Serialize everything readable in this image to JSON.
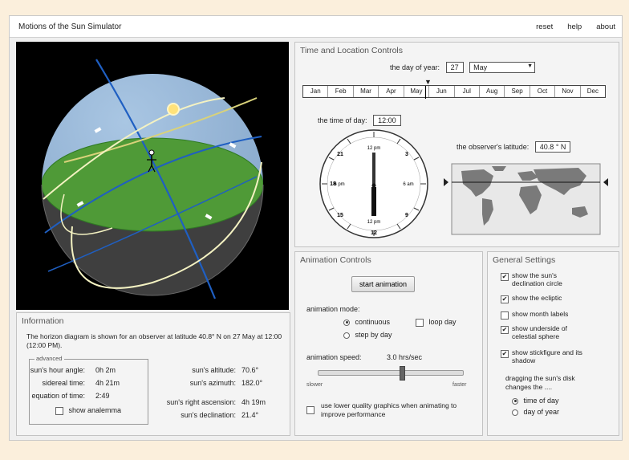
{
  "app": {
    "title": "Motions of the Sun Simulator"
  },
  "menu": {
    "reset": "reset",
    "help": "help",
    "about": "about"
  },
  "time_location": {
    "title": "Time and Location Controls",
    "day_label": "the day of year:",
    "day_value": "27",
    "month_value": "May",
    "months": [
      "Jan",
      "Feb",
      "Mar",
      "Apr",
      "May",
      "Jun",
      "Jul",
      "Aug",
      "Sep",
      "Oct",
      "Nov",
      "Dec"
    ],
    "time_label": "the time of day:",
    "time_value": "12:00",
    "latitude_label": "the observer's latitude:",
    "latitude_value": "40.8 ° N",
    "clock": {
      "top": "12 pm",
      "bottom": "12 pm",
      "left": "6 pm",
      "right": "6 am",
      "n18": "18",
      "n21": "21",
      "n3": "3",
      "n9": "9",
      "n15": "15",
      "n12": "12"
    }
  },
  "info": {
    "title": "Information",
    "description": "The horizon diagram is shown for an observer at latitude 40.8° N on 27 May at 12:00 (12:00 PM).",
    "advanced_label": "advanced",
    "hour_angle_label": "sun's hour angle:",
    "hour_angle_value": "0h 2m",
    "sidereal_label": "sidereal time:",
    "sidereal_value": "4h 21m",
    "eot_label": "equation of time:",
    "eot_value": "2:49",
    "analemma_label": "show analemma",
    "altitude_label": "sun's altitude:",
    "altitude_value": "70.6°",
    "azimuth_label": "sun's azimuth:",
    "azimuth_value": "182.0°",
    "ra_label": "sun's right ascension:",
    "ra_value": "4h 19m",
    "dec_label": "sun's declination:",
    "dec_value": "21.4°"
  },
  "animation": {
    "title": "Animation Controls",
    "start_button": "start animation",
    "mode_label": "animation mode:",
    "continuous": "continuous",
    "step_by_day": "step by day",
    "loop_day": "loop day",
    "speed_label": "animation speed:",
    "speed_value": "3.0 hrs/sec",
    "speed_fraction": 0.58,
    "slower": "slower",
    "faster": "faster",
    "low_quality": "use lower quality graphics when animating to improve performance"
  },
  "settings": {
    "title": "General Settings",
    "declination_circle": "show the sun's declination circle",
    "ecliptic": "show the ecliptic",
    "month_labels": "show month labels",
    "underside": "show underside of celestial sphere",
    "stickfigure": "show stickfigure and its shadow",
    "drag_label": "dragging the sun's disk changes the ....",
    "time_of_day": "time of day",
    "day_of_year": "day of year"
  },
  "colors": {
    "sky": "#8fb2d6",
    "ground": "#4f9a37",
    "celestial_lines": "#1f5fc2",
    "sun_path": "#f4f2c2"
  }
}
